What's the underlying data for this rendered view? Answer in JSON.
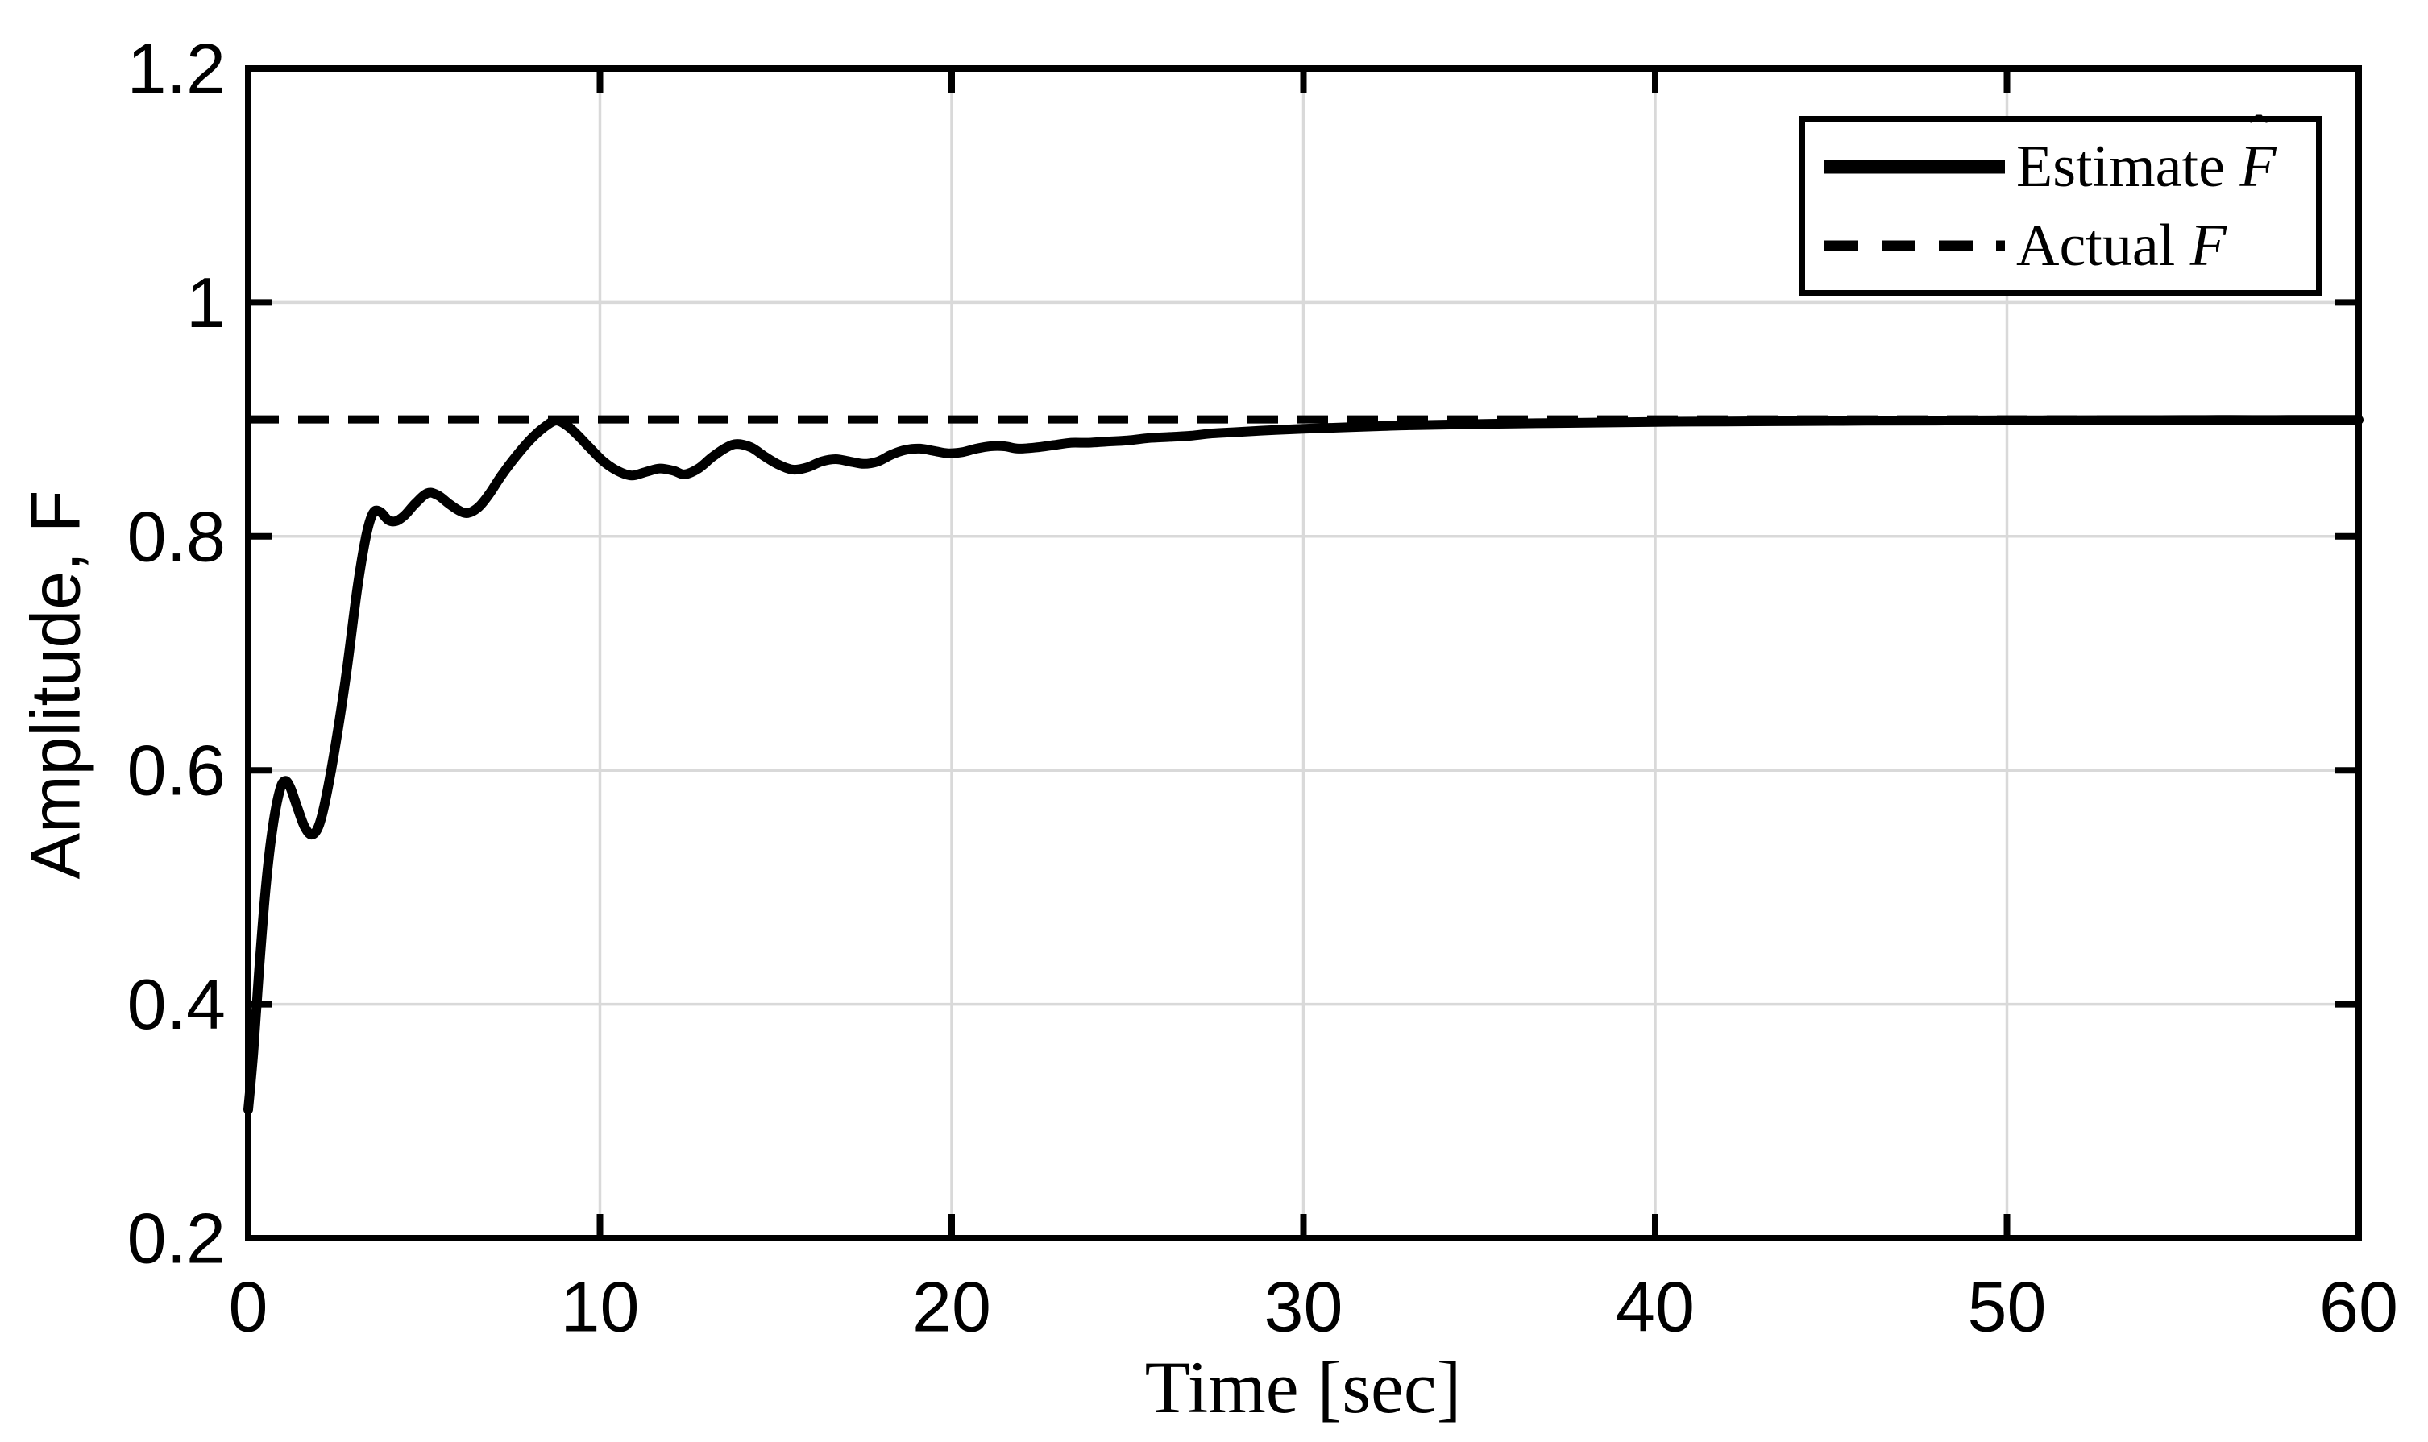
{
  "figure": {
    "background": "#ffffff",
    "frame_color": "#000000",
    "grid_color": "#d9d9d9",
    "line_color": "#000000"
  },
  "chart_data": {
    "type": "line",
    "xlabel": "Time [sec]",
    "ylabel": "Amplitude, F",
    "xlim": [
      0,
      60
    ],
    "ylim": [
      0.2,
      1.2
    ],
    "x_ticks": [
      0,
      10,
      20,
      30,
      40,
      50,
      60
    ],
    "x_tick_labels": [
      "0",
      "10",
      "20",
      "30",
      "40",
      "50",
      "60"
    ],
    "y_ticks": [
      0.2,
      0.4,
      0.6,
      0.8,
      1.0,
      1.2
    ],
    "y_tick_labels": [
      "0.2",
      "0.4",
      "0.6",
      "0.8",
      "1",
      "1.2"
    ],
    "grid": true,
    "legend_position": "top-right",
    "series": [
      {
        "name": "Estimate F̂",
        "style": "solid",
        "color": "#000000",
        "points": [
          [
            0,
            0.31
          ],
          [
            0.15,
            0.36
          ],
          [
            0.3,
            0.425
          ],
          [
            0.5,
            0.5
          ],
          [
            0.7,
            0.552
          ],
          [
            0.9,
            0.583
          ],
          [
            1.05,
            0.591
          ],
          [
            1.2,
            0.585
          ],
          [
            1.4,
            0.568
          ],
          [
            1.6,
            0.552
          ],
          [
            1.8,
            0.545
          ],
          [
            2.0,
            0.552
          ],
          [
            2.2,
            0.575
          ],
          [
            2.5,
            0.625
          ],
          [
            2.8,
            0.685
          ],
          [
            3.1,
            0.755
          ],
          [
            3.35,
            0.8
          ],
          [
            3.55,
            0.82
          ],
          [
            3.75,
            0.821
          ],
          [
            3.98,
            0.814
          ],
          [
            4.2,
            0.813
          ],
          [
            4.45,
            0.818
          ],
          [
            4.75,
            0.828
          ],
          [
            5.1,
            0.837
          ],
          [
            5.4,
            0.835
          ],
          [
            5.7,
            0.828
          ],
          [
            6.0,
            0.822
          ],
          [
            6.25,
            0.82
          ],
          [
            6.55,
            0.825
          ],
          [
            6.85,
            0.836
          ],
          [
            7.2,
            0.852
          ],
          [
            7.6,
            0.868
          ],
          [
            8.0,
            0.882
          ],
          [
            8.4,
            0.893
          ],
          [
            8.75,
            0.899
          ],
          [
            9.05,
            0.895
          ],
          [
            9.35,
            0.887
          ],
          [
            9.7,
            0.876
          ],
          [
            10.1,
            0.864
          ],
          [
            10.5,
            0.856
          ],
          [
            10.9,
            0.852
          ],
          [
            11.3,
            0.855
          ],
          [
            11.7,
            0.858
          ],
          [
            12.1,
            0.856
          ],
          [
            12.4,
            0.853
          ],
          [
            12.8,
            0.858
          ],
          [
            13.2,
            0.868
          ],
          [
            13.6,
            0.876
          ],
          [
            13.9,
            0.879
          ],
          [
            14.3,
            0.876
          ],
          [
            14.7,
            0.868
          ],
          [
            15.1,
            0.861
          ],
          [
            15.5,
            0.857
          ],
          [
            15.9,
            0.859
          ],
          [
            16.3,
            0.864
          ],
          [
            16.7,
            0.866
          ],
          [
            17.1,
            0.864
          ],
          [
            17.5,
            0.862
          ],
          [
            17.9,
            0.864
          ],
          [
            18.3,
            0.87
          ],
          [
            18.7,
            0.874
          ],
          [
            19.1,
            0.875
          ],
          [
            19.5,
            0.873
          ],
          [
            19.9,
            0.871
          ],
          [
            20.3,
            0.872
          ],
          [
            20.7,
            0.875
          ],
          [
            21.1,
            0.877
          ],
          [
            21.5,
            0.877
          ],
          [
            21.9,
            0.875
          ],
          [
            22.4,
            0.876
          ],
          [
            22.9,
            0.878
          ],
          [
            23.4,
            0.88
          ],
          [
            23.9,
            0.88
          ],
          [
            24.4,
            0.881
          ],
          [
            25.0,
            0.882
          ],
          [
            25.6,
            0.884
          ],
          [
            26.2,
            0.885
          ],
          [
            26.8,
            0.886
          ],
          [
            27.4,
            0.888
          ],
          [
            28.0,
            0.889
          ],
          [
            28.6,
            0.89
          ],
          [
            29.2,
            0.891
          ],
          [
            30.0,
            0.892
          ],
          [
            31.0,
            0.893
          ],
          [
            32.0,
            0.894
          ],
          [
            33.0,
            0.895
          ],
          [
            34.0,
            0.8955
          ],
          [
            35.0,
            0.896
          ],
          [
            36.0,
            0.8965
          ],
          [
            37.5,
            0.897
          ],
          [
            39.0,
            0.8975
          ],
          [
            40.5,
            0.898
          ],
          [
            42.0,
            0.8982
          ],
          [
            44.0,
            0.8985
          ],
          [
            46.0,
            0.8988
          ],
          [
            48.0,
            0.899
          ],
          [
            50.0,
            0.8992
          ],
          [
            52.0,
            0.8993
          ],
          [
            54.0,
            0.8994
          ],
          [
            56.0,
            0.8995
          ],
          [
            58.0,
            0.8995
          ],
          [
            60.0,
            0.8996
          ]
        ]
      },
      {
        "name": "Actual F",
        "style": "dashed",
        "color": "#000000",
        "constant_value": 0.9
      }
    ]
  },
  "legend": {
    "entries": [
      {
        "prefix": "Estimate ",
        "symbol": "F",
        "hat": "ˆ",
        "style": "solid"
      },
      {
        "prefix": "Actual ",
        "symbol": "F",
        "hat": "",
        "style": "dashed"
      }
    ]
  }
}
